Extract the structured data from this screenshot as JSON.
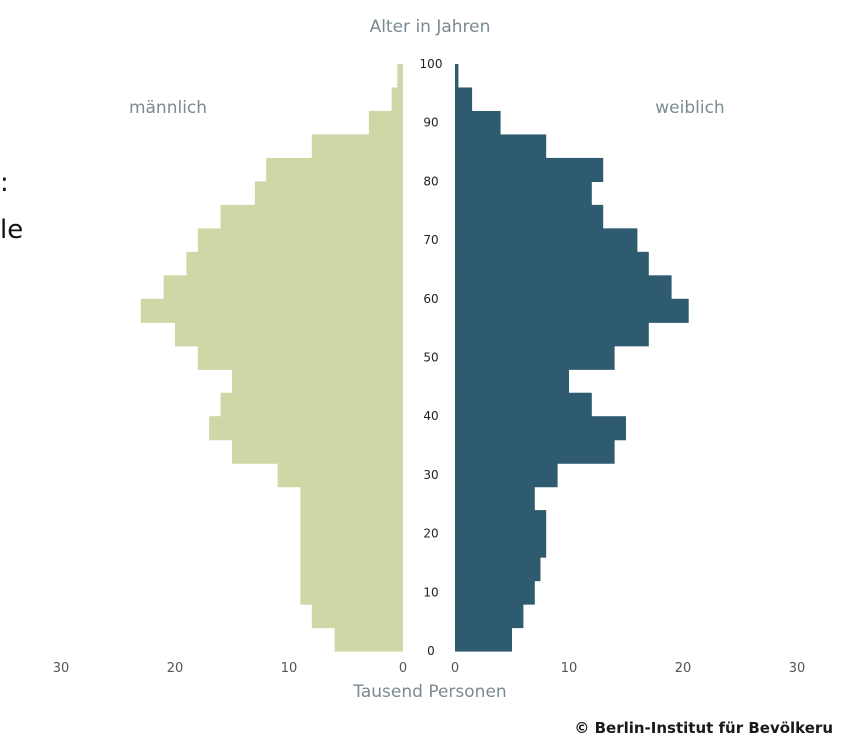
{
  "page": {
    "title_fragment": "",
    "side_text_fragments": [
      ":",
      "le"
    ],
    "credit": "© Berlin-Institut für Bevölkeru"
  },
  "chart_data": {
    "type": "population_pyramid",
    "title": "",
    "ylabel": "Alter in Jahren",
    "xlabel": "Tausend Personen",
    "left_label": "männlich",
    "right_label": "weiblich",
    "colors": {
      "male": "#cfd7a6",
      "female": "#2e5b6f"
    },
    "age_ticks": [
      0,
      10,
      20,
      30,
      40,
      50,
      60,
      70,
      80,
      90,
      100
    ],
    "x_ticks_left": [
      "30",
      "20",
      "10",
      "0"
    ],
    "x_ticks_right": [
      "0",
      "10",
      "20",
      "30"
    ],
    "xlim": [
      0,
      30
    ],
    "ylim": [
      0,
      100
    ],
    "age_bins": [
      0,
      4,
      8,
      12,
      16,
      20,
      24,
      28,
      32,
      36,
      40,
      44,
      48,
      52,
      56,
      60,
      64,
      68,
      72,
      76,
      80,
      84,
      88,
      92,
      96
    ],
    "series": [
      {
        "name": "männlich",
        "side": "left",
        "values": [
          6,
          8,
          9,
          9,
          9,
          9,
          9,
          11,
          15,
          17,
          16,
          15,
          18,
          20,
          23,
          21,
          19,
          18,
          16,
          13,
          12,
          8,
          3,
          1,
          0.5
        ]
      },
      {
        "name": "weiblich",
        "side": "right",
        "values": [
          5,
          6,
          7,
          7.5,
          8,
          8,
          7,
          9,
          14,
          15,
          12,
          10,
          14,
          17,
          20.5,
          19,
          17,
          16,
          13,
          12,
          13,
          8,
          4,
          1.5,
          0.3
        ]
      }
    ]
  }
}
